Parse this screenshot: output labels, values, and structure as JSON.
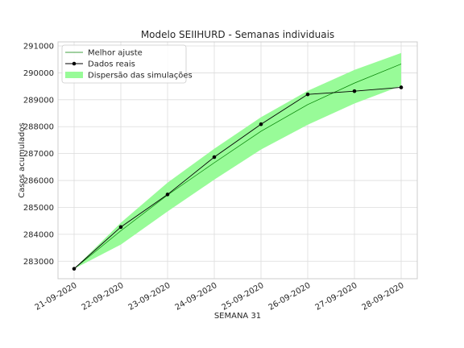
{
  "chart_data": {
    "type": "line",
    "title": "Modelo SEIIHURD - Semanas individuais",
    "xlabel": "SEMANA 31",
    "ylabel": "Casos acumulados",
    "categories": [
      "21-09-2020",
      "22-09-2020",
      "23-09-2020",
      "24-09-2020",
      "25-09-2020",
      "26-09-2020",
      "27-09-2020",
      "28-09-2020"
    ],
    "ylim": [
      282350,
      291150
    ],
    "yticks": [
      283000,
      284000,
      285000,
      286000,
      287000,
      288000,
      289000,
      290000,
      291000
    ],
    "grid": true,
    "legend_position": "top-left",
    "series": [
      {
        "name": "Melhor ajuste",
        "kind": "line",
        "color": "#008000",
        "values": [
          282720,
          284130,
          285460,
          286660,
          287830,
          288820,
          289620,
          290330
        ]
      },
      {
        "name": "Dados reais",
        "kind": "line-marker",
        "color": "#000000",
        "values": [
          282720,
          284270,
          285480,
          286870,
          288090,
          289200,
          289320,
          289460
        ]
      },
      {
        "name": "Dispersão das simulações",
        "kind": "band",
        "color": "#98fb98",
        "lower": [
          282720,
          283620,
          284850,
          286030,
          287150,
          288070,
          288860,
          289520
        ],
        "upper": [
          282720,
          284430,
          285920,
          287180,
          288350,
          289330,
          290110,
          290740
        ]
      }
    ]
  }
}
